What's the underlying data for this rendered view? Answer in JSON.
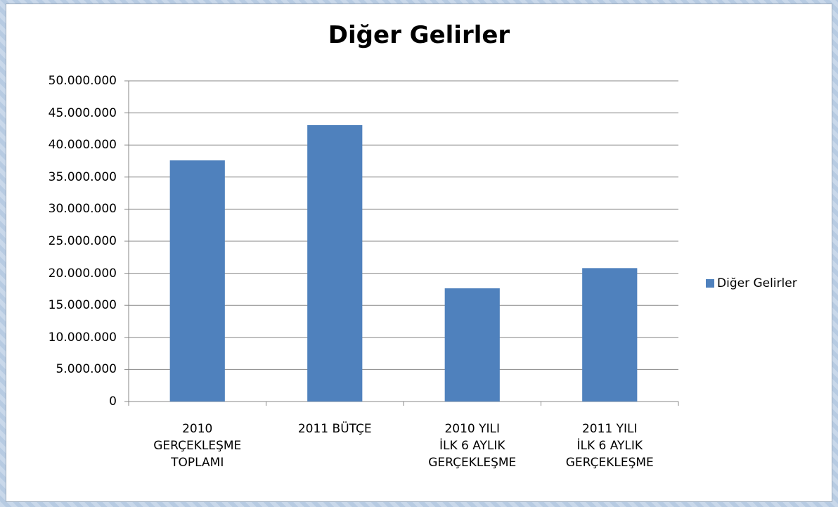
{
  "chart_data": {
    "type": "bar",
    "title": "Diğer Gelirler",
    "categories": [
      "2010\nGERÇEKLEŞME\nTOPLAMI",
      "2011 BÜTÇE",
      "2010 YILI\nİLK 6 AYLIK\nGERÇEKLEŞME",
      "2011 YILI\nİLK 6 AYLIK\nGERÇEKLEŞME"
    ],
    "series": [
      {
        "name": "Diğer Gelirler",
        "color": "#4f81bd",
        "values": [
          37600000,
          43100000,
          17650000,
          20800000
        ]
      }
    ],
    "ylim": [
      0,
      50000000
    ],
    "yticks": [
      0,
      {
        "value": 5000000,
        "label": "5.000.000"
      },
      {
        "value": 10000000,
        "label": "10.000.000"
      },
      {
        "value": 15000000,
        "label": "15.000.000"
      },
      {
        "value": 20000000,
        "label": "20.000.000"
      },
      {
        "value": 25000000,
        "label": "25.000.000"
      },
      {
        "value": 30000000,
        "label": "30.000.000"
      },
      {
        "value": 35000000,
        "label": "35.000.000"
      },
      {
        "value": 40000000,
        "label": "40.000.000"
      },
      {
        "value": 45000000,
        "label": "45.000.000"
      },
      {
        "value": 50000000,
        "label": "50.000.000"
      }
    ],
    "grid": true,
    "legend": "right"
  }
}
